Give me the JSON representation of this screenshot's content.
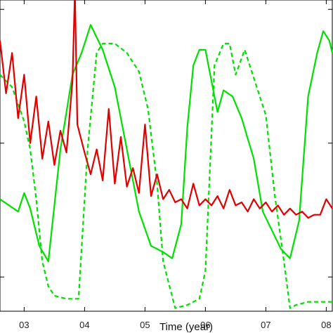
{
  "chart_data": {
    "type": "line",
    "xlabel": "Time (year)",
    "ylabel": "",
    "title": "",
    "xlim": [
      2002.6,
      2008.1
    ],
    "ylim": [
      0,
      10
    ],
    "grid": false,
    "legend": "none",
    "x_ticks": [
      {
        "value": 2003,
        "label": "03"
      },
      {
        "value": 2004,
        "label": "04"
      },
      {
        "value": 2005,
        "label": "05"
      },
      {
        "value": 2006,
        "label": "06"
      },
      {
        "value": 2007,
        "label": "07"
      },
      {
        "value": 2008,
        "label": "08"
      }
    ],
    "y_ticks": [
      1.1,
      5.4,
      9.7
    ],
    "series": [
      {
        "style": "solid",
        "color": "#00e000",
        "x": [
          2002.6,
          2002.75,
          2002.9,
          2003.0,
          2003.1,
          2003.25,
          2003.4,
          2003.6,
          2003.8,
          2003.95,
          2004.1,
          2004.3,
          2004.5,
          2004.7,
          2004.9,
          2005.1,
          2005.3,
          2005.45,
          2005.6,
          2005.7,
          2005.8,
          2005.9,
          2006.0,
          2006.1,
          2006.2,
          2006.3,
          2006.45,
          2006.6,
          2006.8,
          2006.95,
          2007.1,
          2007.25,
          2007.4,
          2007.55,
          2007.7,
          2007.85,
          2007.95,
          2008.05,
          2008.1
        ],
        "y": [
          3.6,
          3.4,
          3.2,
          3.8,
          3.3,
          2.1,
          1.6,
          5.2,
          7.6,
          8.3,
          9.2,
          8.4,
          7.2,
          5.2,
          3.2,
          2.1,
          1.9,
          1.7,
          2.8,
          5.9,
          7.9,
          8.4,
          8.4,
          7.4,
          6.4,
          7.1,
          6.9,
          6.2,
          4.9,
          3.2,
          2.6,
          2.0,
          1.7,
          2.9,
          6.9,
          8.3,
          9.0,
          8.7,
          8.3
        ]
      },
      {
        "style": "dashed",
        "color": "#00e000",
        "x": [
          2002.6,
          2002.8,
          2003.0,
          2003.1,
          2003.2,
          2003.3,
          2003.4,
          2003.5,
          2003.7,
          2003.9,
          2004.05,
          2004.2,
          2004.3,
          2004.5,
          2004.7,
          2004.9,
          2005.05,
          2005.2,
          2005.3,
          2005.5,
          2005.7,
          2005.9,
          2006.0,
          2006.15,
          2006.3,
          2006.4,
          2006.5,
          2006.65,
          2006.75,
          2006.85,
          2007.0,
          2007.15,
          2007.3,
          2007.4,
          2007.5,
          2007.7,
          2007.9,
          2008.0,
          2008.1
        ],
        "y": [
          7.6,
          7.2,
          6.1,
          5.2,
          3.6,
          1.6,
          0.8,
          0.5,
          0.4,
          0.4,
          5.2,
          8.3,
          8.6,
          8.6,
          8.3,
          7.7,
          6.5,
          4.1,
          1.6,
          0.1,
          0.2,
          0.4,
          1.3,
          7.9,
          8.6,
          8.6,
          7.6,
          8.4,
          7.8,
          7.2,
          6.3,
          3.7,
          1.6,
          0.1,
          0.2,
          0.3,
          0.3,
          0.3,
          0.3
        ]
      },
      {
        "style": "solid",
        "color": "#e00000",
        "x": [
          2002.6,
          2002.7,
          2002.8,
          2002.9,
          2003.0,
          2003.1,
          2003.2,
          2003.3,
          2003.4,
          2003.5,
          2003.6,
          2003.7,
          2003.8,
          2003.84,
          2003.88,
          2004.0,
          2004.1,
          2004.2,
          2004.3,
          2004.4,
          2004.5,
          2004.6,
          2004.7,
          2004.8,
          2004.9,
          2005.0,
          2005.1,
          2005.2,
          2005.3,
          2005.4,
          2005.5,
          2005.6,
          2005.7,
          2005.8,
          2005.9,
          2006.0,
          2006.1,
          2006.2,
          2006.3,
          2006.4,
          2006.5,
          2006.6,
          2006.7,
          2006.8,
          2006.9,
          2007.0,
          2007.1,
          2007.2,
          2007.3,
          2007.4,
          2007.5,
          2007.6,
          2007.7,
          2007.8,
          2007.9,
          2008.0,
          2008.1
        ],
        "y": [
          8.7,
          7.0,
          8.3,
          6.2,
          7.6,
          5.4,
          6.9,
          4.9,
          6.1,
          4.7,
          5.8,
          5.1,
          7.4,
          10.3,
          6.0,
          5.1,
          4.4,
          5.2,
          4.2,
          6.5,
          4.1,
          5.6,
          4.0,
          4.6,
          3.8,
          6.0,
          3.7,
          4.4,
          3.6,
          3.9,
          3.5,
          3.6,
          3.3,
          4.1,
          3.4,
          3.6,
          3.4,
          3.7,
          3.3,
          3.9,
          3.4,
          3.5,
          3.2,
          3.6,
          3.3,
          3.5,
          3.2,
          3.4,
          3.1,
          3.3,
          3.1,
          3.2,
          3.0,
          3.1,
          3.1,
          3.6,
          3.3
        ]
      }
    ]
  }
}
